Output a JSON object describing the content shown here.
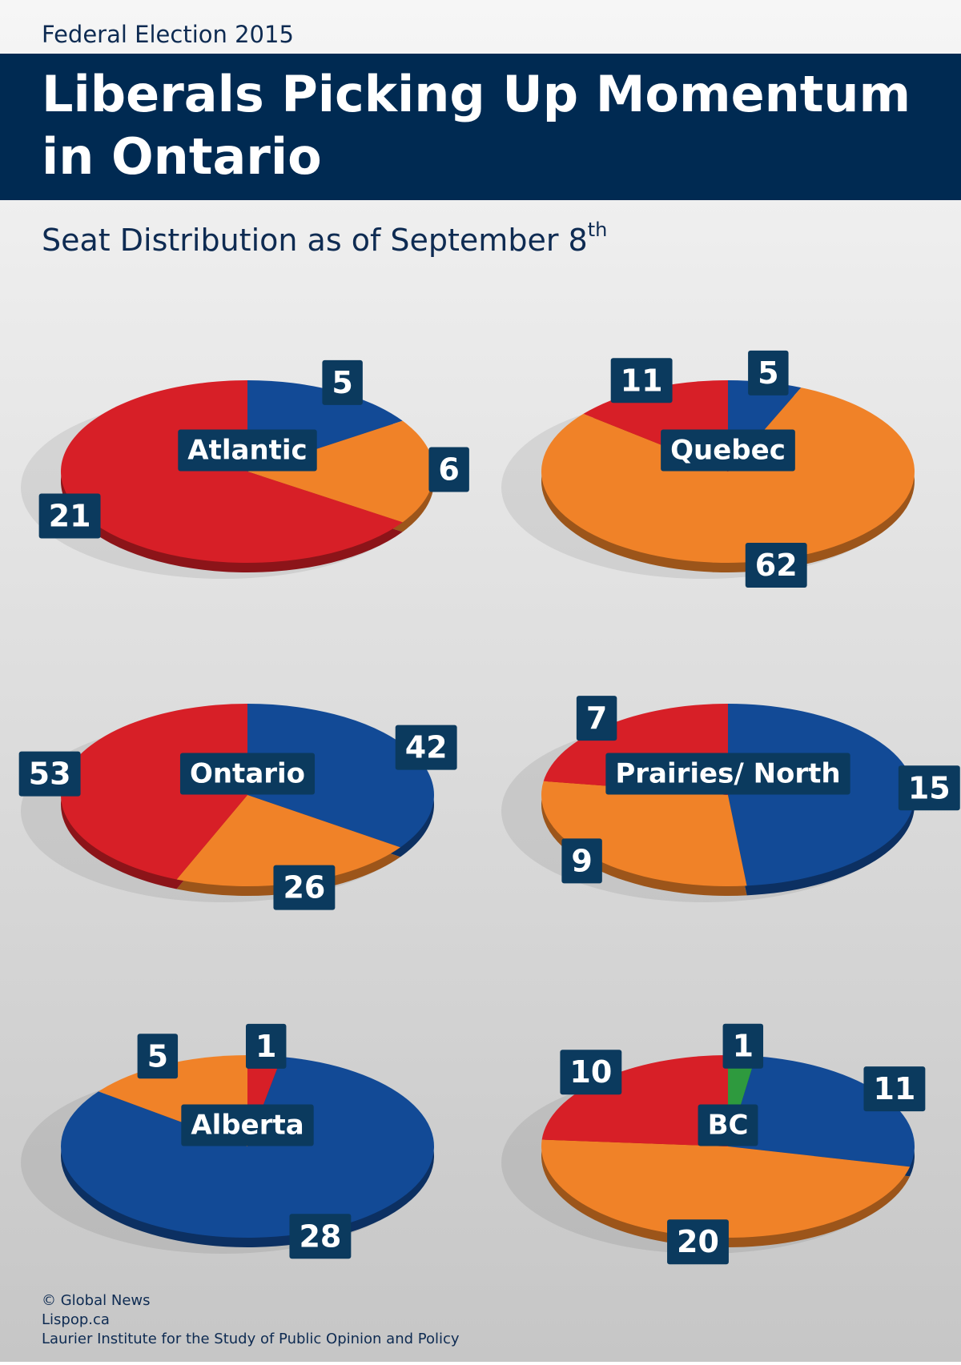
{
  "header": {
    "kicker": "Federal Election 2015",
    "title_lines": [
      "Liberals Picking Up Momentum",
      "in Ontario"
    ],
    "subtitle": "Seat Distribution as of September 8",
    "subtitle_sup": "th"
  },
  "chart_data": [
    {
      "type": "pie",
      "title": "Atlantic",
      "values": [
        5,
        6,
        21
      ],
      "colors": [
        "#124a96",
        "#f08228",
        "#d71f27"
      ]
    },
    {
      "type": "pie",
      "title": "Quebec",
      "values": [
        5,
        62,
        11
      ],
      "colors": [
        "#124a96",
        "#f08228",
        "#d71f27"
      ]
    },
    {
      "type": "pie",
      "title": "Ontario",
      "values": [
        42,
        26,
        53
      ],
      "colors": [
        "#124a96",
        "#f08228",
        "#d71f27"
      ]
    },
    {
      "type": "pie",
      "title": "Prairies/ North",
      "values": [
        15,
        9,
        7
      ],
      "colors": [
        "#124a96",
        "#f08228",
        "#d71f27"
      ]
    },
    {
      "type": "pie",
      "title": "Alberta",
      "values": [
        1,
        28,
        5
      ],
      "colors": [
        "#d71f27",
        "#124a96",
        "#f08228"
      ]
    },
    {
      "type": "pie",
      "title": "BC",
      "values": [
        1,
        11,
        20,
        10
      ],
      "colors": [
        "#2e9a3e",
        "#124a96",
        "#f08228",
        "#d71f27"
      ]
    }
  ],
  "footer": [
    "© Global News",
    "Lispop.ca",
    "Laurier Institute for the Study of Public Opinion and Policy"
  ]
}
